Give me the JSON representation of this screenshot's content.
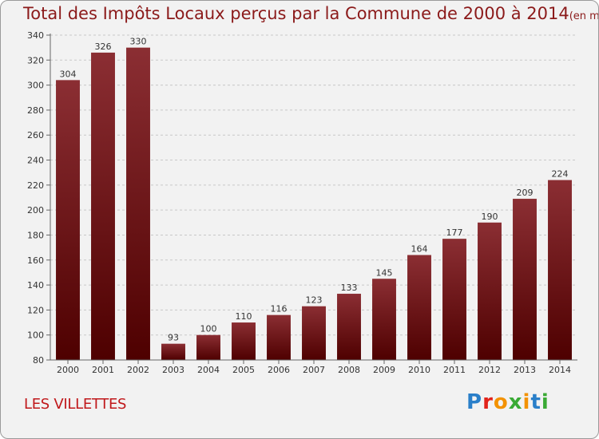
{
  "chart_data": {
    "type": "bar",
    "title": "Total des Impôts Locaux perçus par la Commune de 2000 à 2014",
    "title_unit": "(en milliers d'€)",
    "categories": [
      "2000",
      "2001",
      "2002",
      "2003",
      "2004",
      "2005",
      "2006",
      "2007",
      "2008",
      "2009",
      "2010",
      "2011",
      "2012",
      "2013",
      "2014"
    ],
    "values": [
      304,
      326,
      330,
      93,
      100,
      110,
      116,
      123,
      133,
      145,
      164,
      177,
      190,
      209,
      224
    ],
    "ylim": [
      80,
      340
    ],
    "yticks": [
      80,
      100,
      120,
      140,
      160,
      180,
      200,
      220,
      240,
      260,
      280,
      300,
      320,
      340
    ],
    "xlabel": "",
    "ylabel": "",
    "grid": "horizontal dashed",
    "bar_color_top": "#8b2e33",
    "bar_color_bottom": "#4e0000"
  },
  "footer": {
    "commune": "LES VILLETTES",
    "logo_letters": [
      "P",
      "r",
      "o",
      "x",
      "i",
      "t",
      "i"
    ],
    "logo_colors": [
      "#2a7fc9",
      "#e2231a",
      "#f39200",
      "#3aaa35",
      "#f39200",
      "#2a7fc9",
      "#3aaa35"
    ]
  }
}
